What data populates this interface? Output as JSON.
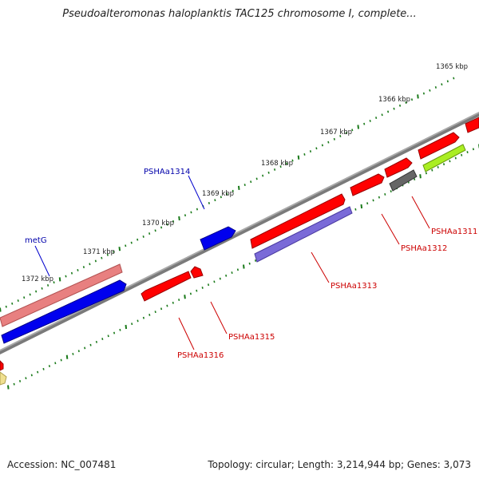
{
  "title": "Pseudoalteromonas haloplanktis TAC125 chromosome I, complete...",
  "footer": {
    "accession": "Accession: NC_007481",
    "summary": "Topology: circular; Length: 3,214,944 bp; Genes: 3,073"
  },
  "ticks": [
    {
      "label": "1365 kbp"
    },
    {
      "label": "1366 kbp"
    },
    {
      "label": "1367 kbp"
    },
    {
      "label": "1368 kbp"
    },
    {
      "label": "1369 kbp"
    },
    {
      "label": "1370 kbp"
    },
    {
      "label": "1371 kbp"
    },
    {
      "label": "1372 kbp"
    }
  ],
  "genes": [
    {
      "label": "PSHAa1311",
      "color": "#cc0000"
    },
    {
      "label": "PSHAa1312",
      "color": "#cc0000"
    },
    {
      "label": "PSHAa1313",
      "color": "#cc0000"
    },
    {
      "label": "PSHAa1314",
      "color": "#0000aa"
    },
    {
      "label": "PSHAa1315",
      "color": "#cc0000"
    },
    {
      "label": "PSHAa1316",
      "color": "#cc0000"
    },
    {
      "label": "metG",
      "color": "#0000aa"
    }
  ],
  "colors": {
    "backbone": "#808080",
    "tick": "#1a7a1a",
    "red_gene": "#ff0000",
    "blue_gene": "#0000ee",
    "pink_gene": "#e88080",
    "purple_gene": "#7a6ad8",
    "green_gene": "#aaee22",
    "gray_gene": "#666666",
    "yellow_gene": "#f0e090"
  }
}
